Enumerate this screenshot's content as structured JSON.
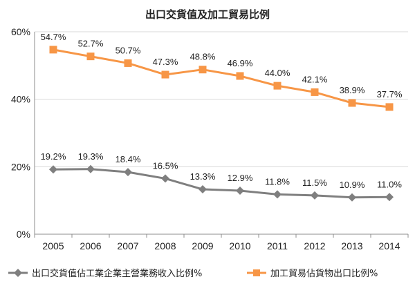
{
  "chart_data": {
    "type": "line",
    "title": "出口交貨值及加工貿易比例",
    "categories": [
      "2005",
      "2006",
      "2007",
      "2008",
      "2009",
      "2010",
      "2011",
      "2012",
      "2013",
      "2014"
    ],
    "ylim": [
      0,
      60
    ],
    "yticks": [
      0,
      20,
      40,
      60
    ],
    "ytick_labels": [
      "0%",
      "20%",
      "40%",
      "60%"
    ],
    "grid": true,
    "legend_position": "bottom",
    "series": [
      {
        "name": "出口交貨值佔工業企業主營業務收入比例%",
        "color": "#7f7f7f",
        "marker": "diamond",
        "values": [
          19.2,
          19.3,
          18.4,
          16.5,
          13.3,
          12.9,
          11.8,
          11.5,
          10.9,
          11.0
        ],
        "labels": [
          "19.2%",
          "19.3%",
          "18.4%",
          "16.5%",
          "13.3%",
          "12.9%",
          "11.8%",
          "11.5%",
          "10.9%",
          "11.0%"
        ]
      },
      {
        "name": "加工貿易佔貨物出口比例%",
        "color": "#f79646",
        "marker": "square",
        "values": [
          54.7,
          52.7,
          50.7,
          47.3,
          48.8,
          46.9,
          44.0,
          42.1,
          38.9,
          37.7
        ],
        "labels": [
          "54.7%",
          "52.7%",
          "50.7%",
          "47.3%",
          "48.8%",
          "46.9%",
          "44.0%",
          "42.1%",
          "38.9%",
          "37.7%"
        ]
      }
    ]
  }
}
